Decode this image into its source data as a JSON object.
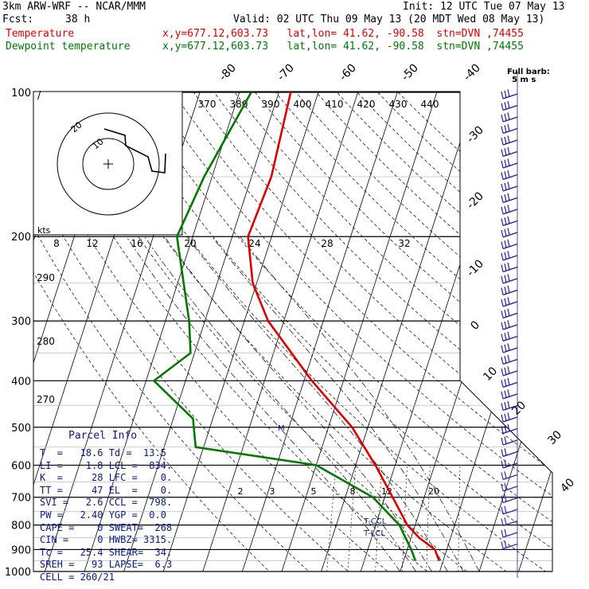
{
  "header": {
    "model": "3km ARW-WRF -- NCAR/MMM",
    "init": "Init: 12 UTC Tue 07 May 13",
    "fcst_label": "Fcst:",
    "fcst_value": "38 h",
    "valid": "Valid: 02 UTC Thu 09 May 13 (20 MDT Wed 08 May 13)",
    "temp_label": "Temperature",
    "temp_info": "x,y=677.12,603.73   lat,lon= 41.62, -90.58  stn=DVN ,74455",
    "dew_label": "Dewpoint temperature",
    "dew_info": "x,y=677.12,603.73   lat,lon= 41.62, -90.58  stn=DVN ,74455"
  },
  "barb_key": {
    "line1": "Full barb:",
    "line2": "5 m s"
  },
  "parcel_info": {
    "title": "Parcel Info",
    "rows": [
      "T  =   18.6 Td =  13.5",
      "LI =    1.8 LCL =  834.",
      "K  =     28 LFC =    0.",
      "TT =     47 EL  =    0.",
      "SVI =   2.6 CCL =  798.",
      "PW =   2.40 YGP =  0.0",
      "CAPE =    0 SWEAT=  268",
      "CIN =     0 HWBZ= 3315.",
      "Tc =   25.4 SHEAR=  34.",
      "SREH =   93 LAPSE=  6.3",
      "CELL = 260/21"
    ]
  },
  "labels": {
    "tcl": "T-CCL",
    "lcl": "T-LCL",
    "kts": "kts",
    "m": "M"
  },
  "chart_data": {
    "type": "line",
    "title": "",
    "ylabel": "",
    "pressure_levels": [
      100,
      200,
      300,
      400,
      500,
      600,
      700,
      800,
      900,
      1000
    ],
    "isotherm_labels": [
      -80,
      -70,
      -60,
      -50,
      -40,
      -30,
      -20,
      -10,
      0,
      10,
      20,
      30,
      40
    ],
    "theta_labels": [
      370,
      380,
      390,
      400,
      410,
      420,
      430,
      440
    ],
    "theta_low_labels": [
      290,
      280,
      270
    ],
    "mixing_ratio_labels": [
      2,
      3,
      5,
      8,
      12,
      20
    ],
    "hodograph_top_labels": [
      8,
      12,
      16,
      20,
      24,
      28,
      32
    ],
    "hodograph_rings": [
      20,
      10
    ],
    "series": [
      {
        "name": "Temperature",
        "color": "#e00000",
        "p": [
          100,
          150,
          200,
          250,
          300,
          400,
          500,
          600,
          700,
          800,
          850,
          900,
          950
        ],
        "t": [
          -57,
          -55,
          -56,
          -51,
          -44,
          -28,
          -14,
          -5,
          2,
          8,
          12,
          17,
          19
        ]
      },
      {
        "name": "Dewpoint temperature",
        "color": "#007a00",
        "p": [
          100,
          150,
          200,
          300,
          350,
          400,
          480,
          550,
          600,
          700,
          800,
          900,
          950
        ],
        "t": [
          -67,
          -72,
          -74,
          -64,
          -61,
          -68,
          -55,
          -52,
          -20,
          -3,
          6,
          11,
          13
        ]
      }
    ]
  }
}
